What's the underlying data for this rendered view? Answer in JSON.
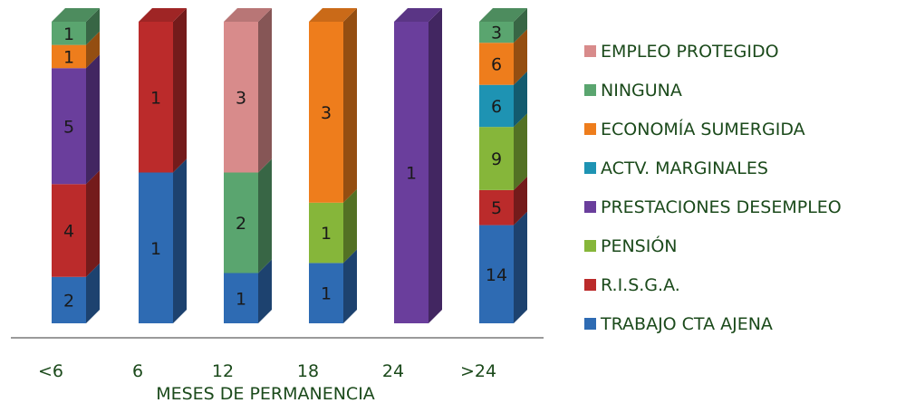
{
  "chart_data": {
    "type": "bar",
    "stacked": true,
    "three_d": true,
    "xlabel": "MESES DE PERMANENCIA",
    "categories": [
      "<6",
      "6",
      "12",
      "18",
      "24",
      ">24"
    ],
    "legend_position": "right",
    "series": [
      {
        "name": "TRABAJO CTA AJENA",
        "color": "#2e6bb3",
        "values": [
          2,
          1,
          1,
          1,
          0,
          14
        ]
      },
      {
        "name": "R.I.S.G.A.",
        "color": "#bb2b2b",
        "values": [
          4,
          1,
          0,
          0,
          0,
          5
        ]
      },
      {
        "name": "PENSIÓN",
        "color": "#86b63a",
        "values": [
          0,
          0,
          0,
          1,
          0,
          9
        ]
      },
      {
        "name": "PRESTACIONES DESEMPLEO",
        "color": "#6a3e9c",
        "values": [
          5,
          0,
          0,
          0,
          1,
          0
        ]
      },
      {
        "name": "ACTV. MARGINALES",
        "color": "#1e93b3",
        "values": [
          0,
          0,
          0,
          0,
          0,
          6
        ]
      },
      {
        "name": "ECONOMÍA SUMERGIDA",
        "color": "#ee7d1c",
        "values": [
          1,
          0,
          0,
          3,
          0,
          6
        ]
      },
      {
        "name": "NINGUNA",
        "color": "#5aa56f",
        "values": [
          1,
          0,
          2,
          0,
          0,
          3
        ]
      },
      {
        "name": "EMPLEO PROTEGIDO",
        "color": "#d88b8b",
        "values": [
          0,
          0,
          3,
          0,
          0,
          0
        ]
      }
    ],
    "legend_order": [
      "EMPLEO PROTEGIDO",
      "NINGUNA",
      "ECONOMÍA SUMERGIDA",
      "ACTV. MARGINALES",
      "PRESTACIONES DESEMPLEO",
      "PENSIÓN",
      "R.I.S.G.A.",
      "TRABAJO CTA AJENA"
    ]
  }
}
